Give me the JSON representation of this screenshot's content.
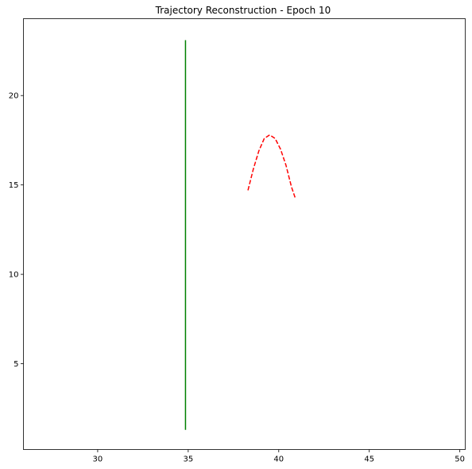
{
  "chart_data": {
    "type": "line",
    "title": "Trajectory Reconstruction - Epoch 10",
    "xlabel": "",
    "ylabel": "",
    "xlim": [
      25.9,
      50.3
    ],
    "ylim": [
      0.2,
      24.3
    ],
    "xticks": [
      30,
      35,
      40,
      45,
      50
    ],
    "yticks": [
      5,
      10,
      15,
      20
    ],
    "grid": false,
    "legend": "none",
    "series": [
      {
        "color": "#008000",
        "style": "solid",
        "x": [
          34.85,
          34.85,
          34.85,
          34.85,
          34.85
        ],
        "y": [
          1.3,
          6.8,
          12.2,
          17.7,
          23.1
        ]
      },
      {
        "color": "#ff0000",
        "style": "dashed",
        "x": [
          38.3,
          38.6,
          38.9,
          39.2,
          39.5,
          39.8,
          40.1,
          40.4,
          40.7,
          40.9
        ],
        "y": [
          14.7,
          15.9,
          16.9,
          17.6,
          17.8,
          17.6,
          17.0,
          16.1,
          14.9,
          14.3
        ]
      }
    ]
  }
}
